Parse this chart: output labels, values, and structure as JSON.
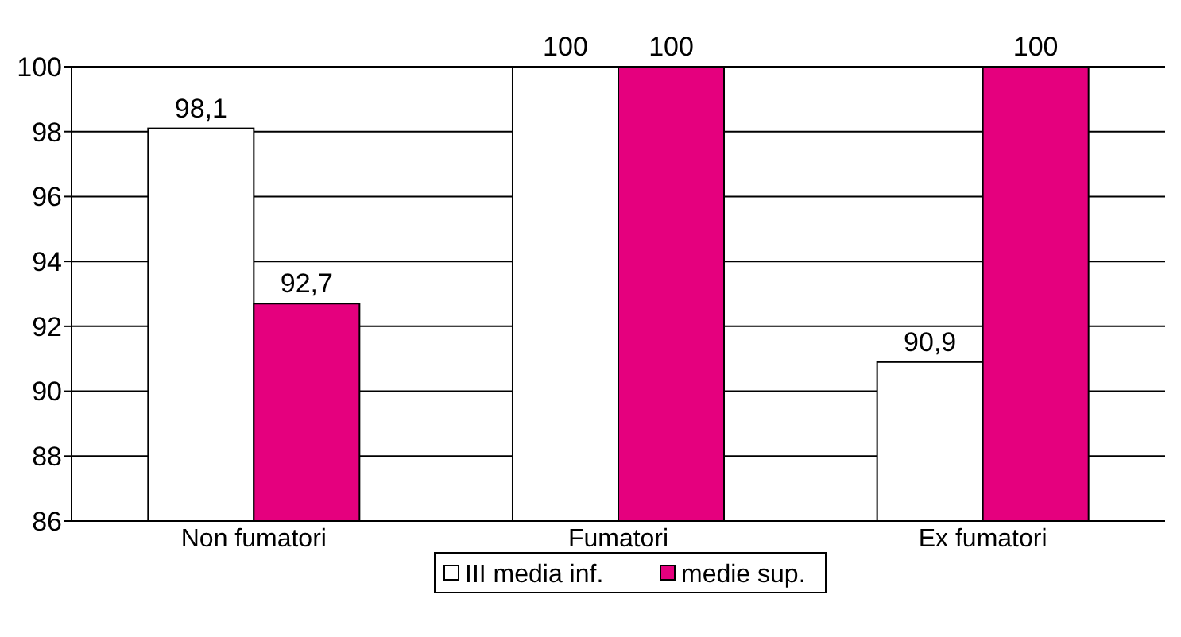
{
  "chart_data": {
    "type": "bar",
    "categories": [
      "Non fumatori",
      "Fumatori",
      "Ex fumatori"
    ],
    "series": [
      {
        "name": "III media inf.",
        "color": "#ffffff",
        "values": [
          98.1,
          100,
          90.9
        ],
        "value_labels": [
          "98,1",
          "100",
          "90,9"
        ]
      },
      {
        "name": "medie sup.",
        "color": "#e5007e",
        "values": [
          92.7,
          100,
          100
        ],
        "value_labels": [
          "92,7",
          "100",
          "100"
        ]
      }
    ],
    "ylim": [
      86,
      100
    ],
    "yticks": [
      86,
      88,
      90,
      92,
      94,
      96,
      98,
      100
    ],
    "grid": "y",
    "legend": "bottom"
  }
}
